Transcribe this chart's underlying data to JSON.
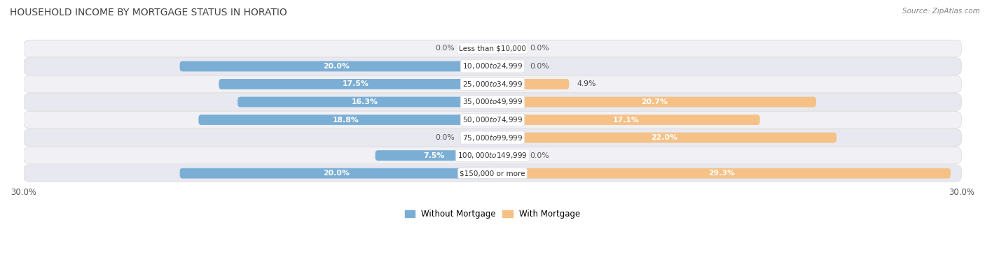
{
  "title": "HOUSEHOLD INCOME BY MORTGAGE STATUS IN HORATIO",
  "source": "Source: ZipAtlas.com",
  "categories": [
    "Less than $10,000",
    "$10,000 to $24,999",
    "$25,000 to $34,999",
    "$35,000 to $49,999",
    "$50,000 to $74,999",
    "$75,000 to $99,999",
    "$100,000 to $149,999",
    "$150,000 or more"
  ],
  "without_mortgage": [
    0.0,
    20.0,
    17.5,
    16.3,
    18.8,
    0.0,
    7.5,
    20.0
  ],
  "with_mortgage": [
    0.0,
    0.0,
    4.9,
    20.7,
    17.1,
    22.0,
    0.0,
    29.3
  ],
  "color_without": "#7aaed4",
  "color_with": "#f5c186",
  "color_without_light": "#c5ddef",
  "color_with_light": "#fde5c8",
  "xlim": 30.0,
  "legend_without": "Without Mortgage",
  "legend_with": "With Mortgage",
  "title_fontsize": 10,
  "source_fontsize": 7.5,
  "bar_height": 0.58,
  "label_fontsize": 7.8,
  "cat_fontsize": 7.5
}
